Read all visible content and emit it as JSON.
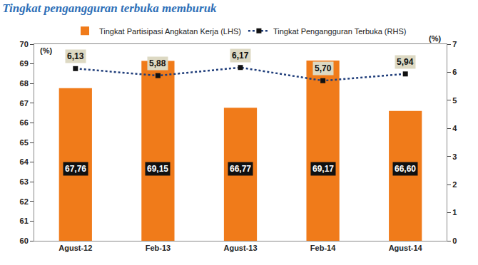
{
  "chart_data": {
    "type": "bar",
    "title": "Tingkat pengangguran terbuka memburuk",
    "y_label": "(%)",
    "y2_label": "(%)",
    "categories": [
      "Agust-12",
      "Feb-13",
      "Agust-13",
      "Feb-14",
      "Agust-14"
    ],
    "series": [
      {
        "name": "Tingkat Partisipasi Angkatan Kerja (LHS)",
        "type": "bar",
        "color": "#f07b1a",
        "values": [
          67.76,
          69.15,
          66.77,
          69.17,
          66.6
        ],
        "value_labels": [
          "67,76",
          "69,15",
          "66,77",
          "69,17",
          "66,60"
        ]
      },
      {
        "name": "Tingkat Pengangguran Terbuka (RHS)",
        "type": "line",
        "axis": "y2",
        "color": "#1f3d7a",
        "line_style": "dot",
        "marker": "square",
        "values": [
          6.13,
          5.88,
          6.17,
          5.7,
          5.94
        ],
        "value_labels": [
          "6,13",
          "5,88",
          "6,17",
          "5,70",
          "5,94"
        ]
      }
    ],
    "ylim": [
      60,
      70
    ],
    "yticks": [
      60,
      61,
      62,
      63,
      64,
      65,
      66,
      67,
      68,
      69,
      70
    ],
    "y2lim": [
      0,
      7
    ],
    "y2ticks": [
      0,
      1,
      2,
      3,
      4,
      5,
      6,
      7
    ],
    "grid": false,
    "legend": "top",
    "data_labels": true
  }
}
